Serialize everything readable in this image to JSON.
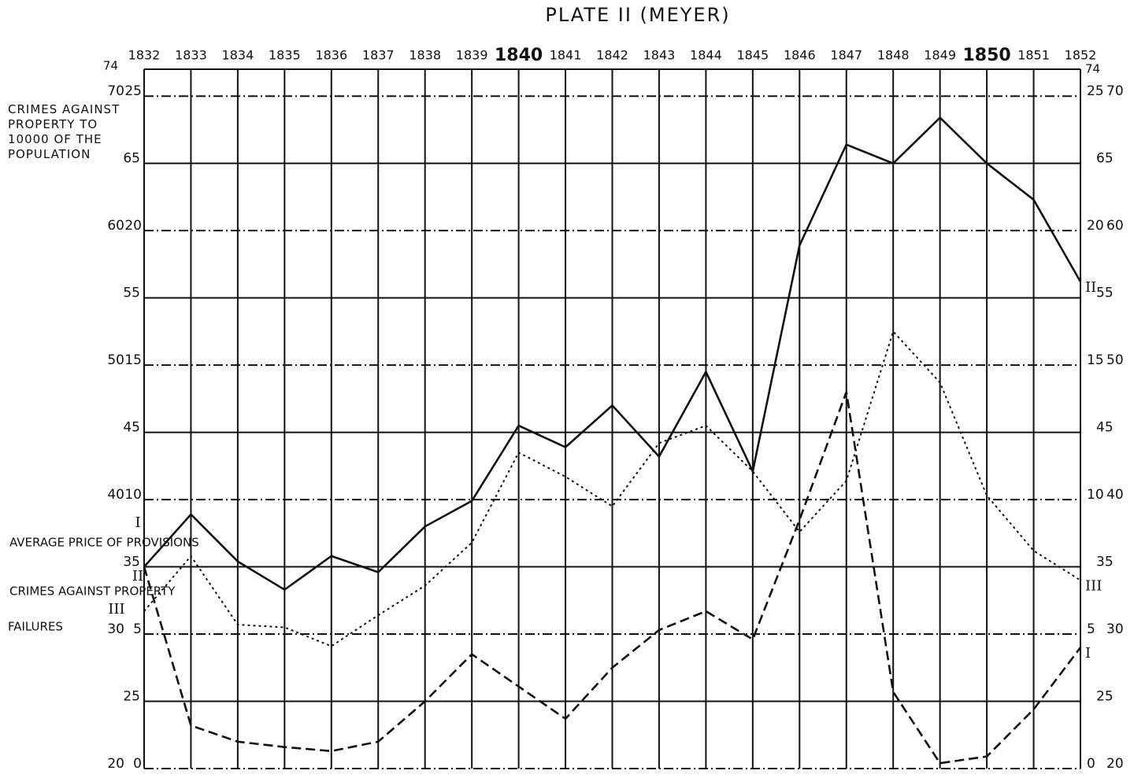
{
  "chart_data": {
    "type": "line",
    "title": "PLATE II (MEYER)",
    "categories": [
      "1832",
      "1833",
      "1834",
      "1835",
      "1836",
      "1837",
      "1838",
      "1839",
      "1840",
      "1841",
      "1842",
      "1843",
      "1844",
      "1845",
      "1846",
      "1847",
      "1848",
      "1849",
      "1850",
      "1851",
      "1852"
    ],
    "ylim": [
      20,
      72
    ],
    "yticks": [
      20,
      25,
      30,
      35,
      40,
      45,
      50,
      55,
      60,
      65,
      70
    ],
    "y2lim": [
      0,
      26
    ],
    "y2ticks": [
      0,
      5,
      10,
      15,
      20,
      25
    ],
    "top_corner_label": "74",
    "y_axis_label": "CRIMES AGAINST PROPERTY TO 10000 OF THE POPULATION",
    "grid": true,
    "series": [
      {
        "name": "AVERAGE PRICE OF PROVISIONS",
        "numeral": "I",
        "color": "#111111",
        "dash": "dashed",
        "values": [
          35.0,
          23.2,
          22.0,
          21.6,
          21.3,
          22.0,
          25.0,
          28.5,
          26.1,
          23.7,
          27.5,
          30.3,
          31.7,
          29.6,
          38.5,
          48.0,
          25.7,
          20.4,
          20.9,
          24.4,
          29.0
        ]
      },
      {
        "name": "CRIMES AGAINST PROPERTY",
        "numeral": "II",
        "color": "#111111",
        "dash": "solid",
        "values": [
          35.0,
          38.9,
          35.4,
          33.3,
          35.8,
          34.6,
          38.0,
          39.9,
          45.5,
          43.9,
          47.0,
          43.2,
          49.5,
          42.1,
          58.9,
          66.4,
          65.0,
          68.4,
          65.0,
          62.3,
          56.2
        ]
      },
      {
        "name": "FAILURES",
        "numeral": "III",
        "color": "#111111",
        "dash": "dotted",
        "values": [
          31.7,
          35.8,
          30.7,
          30.5,
          29.1,
          31.4,
          33.6,
          36.8,
          43.5,
          41.7,
          39.5,
          44.2,
          45.5,
          42.1,
          37.6,
          41.4,
          52.5,
          48.7,
          40.3,
          36.2,
          34.0
        ]
      }
    ]
  }
}
